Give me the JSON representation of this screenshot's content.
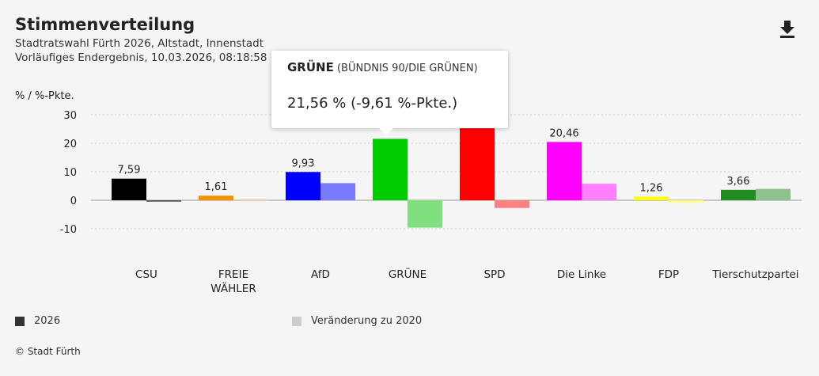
{
  "header": {
    "title": "Stimmenverteilung",
    "subtitle_line1": "Stadtratswahl Fürth 2026, Altstadt, Innenstadt",
    "subtitle_line2": "Vorläufiges Endergebnis, 10.03.2026, 08:18:58",
    "download_icon": "download-icon"
  },
  "tooltip": {
    "party": "GRÜNE",
    "party_full": "(BÜNDNIS 90/DIE GRÜNEN)",
    "value_text": "21,56 % (-9,61 %-Pkte.)"
  },
  "legend": {
    "item_2026": "2026",
    "item_change": "Veränderung zu 2020",
    "color_2026": "#333333",
    "color_change": "#cccccc"
  },
  "footer": {
    "copyright": "© Stadt Fürth"
  },
  "chart_data": {
    "type": "bar",
    "title": "Stimmenverteilung",
    "ylabel": "% / %-Pkte.",
    "ylim": [
      -10,
      30
    ],
    "yticks": [
      30,
      20,
      10,
      0,
      -10
    ],
    "grid": true,
    "legend_position": "bottom",
    "categories": [
      {
        "label": "CSU",
        "color": "#000000",
        "change_color": "#555555"
      },
      {
        "label": "FREIE WÄHLER",
        "lines": [
          "FREIE",
          "WÄHLER"
        ],
        "color": "#f39200",
        "change_color": "#f7c06a"
      },
      {
        "label": "AfD",
        "color": "#0000ff",
        "change_color": "#7a7aff"
      },
      {
        "label": "GRÜNE",
        "color": "#00cc00",
        "change_color": "#80e080"
      },
      {
        "label": "SPD",
        "color": "#ff0000",
        "change_color": "#ff8080"
      },
      {
        "label": "Die Linke",
        "color": "#ff00ff",
        "change_color": "#ff80ff"
      },
      {
        "label": "FDP",
        "color": "#ffff00",
        "change_color": "#ffff80"
      },
      {
        "label": "Tierschutzpartei",
        "color": "#228b22",
        "change_color": "#8fc08f"
      }
    ],
    "series": [
      {
        "name": "2026",
        "values": [
          7.59,
          1.61,
          9.93,
          21.56,
          26,
          20.46,
          1.26,
          3.66
        ],
        "labels": [
          "7,59",
          "1,61",
          "9,93",
          "",
          "",
          "20,46",
          "1,26",
          "3,66"
        ]
      },
      {
        "name": "Veränderung zu 2020",
        "values": [
          -0.5,
          -0.2,
          6.0,
          -9.61,
          -2.7,
          5.8,
          -0.9,
          4.0
        ]
      }
    ]
  }
}
